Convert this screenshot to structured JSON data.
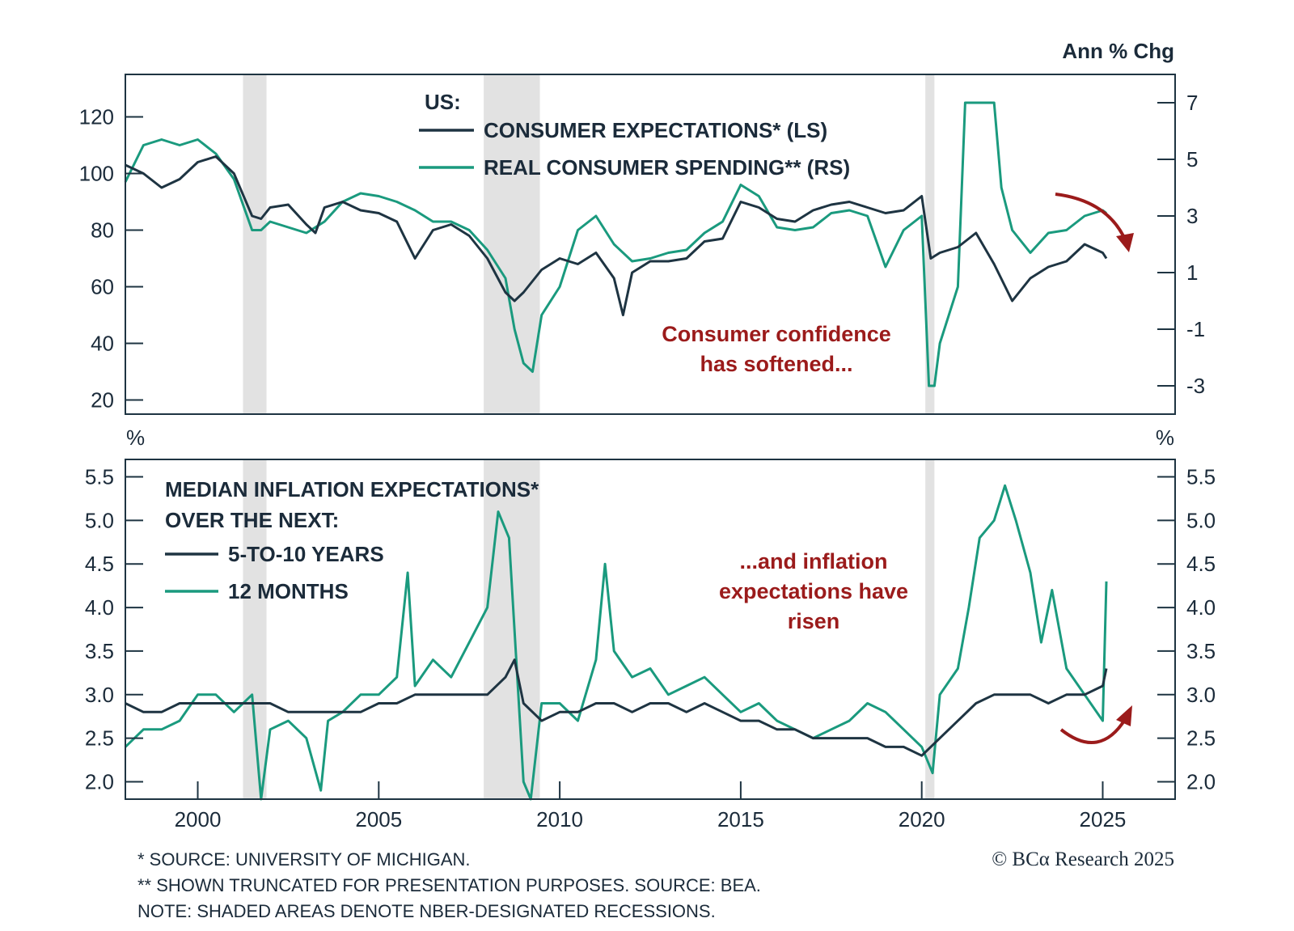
{
  "chart_data": [
    {
      "type": "line",
      "title": "US:",
      "right_axis_title": "Ann % Chg",
      "left_ylim": [
        15,
        135
      ],
      "left_ticks": [
        20,
        40,
        60,
        80,
        100,
        120
      ],
      "right_ylim": [
        -4,
        8
      ],
      "right_ticks": [
        -3,
        -1,
        1,
        3,
        5,
        7
      ],
      "xlim": [
        1998,
        2027
      ],
      "grid": false,
      "legend_position": "top-center",
      "series": [
        {
          "name": "CONSUMER EXPECTATIONS* (LS)",
          "axis": "left",
          "color": "#1e3442",
          "x": [
            1998.0,
            1998.5,
            1999.0,
            1999.5,
            2000.0,
            2000.5,
            2001.0,
            2001.5,
            2001.75,
            2002.0,
            2002.5,
            2003.0,
            2003.25,
            2003.5,
            2004.0,
            2004.5,
            2005.0,
            2005.5,
            2006.0,
            2006.5,
            2007.0,
            2007.5,
            2008.0,
            2008.5,
            2008.75,
            2009.0,
            2009.5,
            2010.0,
            2010.5,
            2011.0,
            2011.5,
            2011.75,
            2012.0,
            2012.5,
            2013.0,
            2013.5,
            2014.0,
            2014.5,
            2015.0,
            2015.5,
            2016.0,
            2016.5,
            2017.0,
            2017.5,
            2018.0,
            2018.5,
            2019.0,
            2019.5,
            2020.0,
            2020.25,
            2020.5,
            2021.0,
            2021.5,
            2022.0,
            2022.5,
            2023.0,
            2023.5,
            2024.0,
            2024.5,
            2025.0,
            2025.1
          ],
          "values": [
            103,
            100,
            95,
            98,
            104,
            106,
            100,
            85,
            84,
            88,
            89,
            82,
            79,
            88,
            90,
            87,
            86,
            83,
            70,
            80,
            82,
            78,
            70,
            58,
            55,
            58,
            66,
            70,
            68,
            72,
            63,
            50,
            65,
            69,
            69,
            70,
            76,
            77,
            90,
            88,
            84,
            83,
            87,
            89,
            90,
            88,
            86,
            87,
            92,
            70,
            72,
            74,
            79,
            68,
            55,
            63,
            67,
            69,
            75,
            72,
            70
          ]
        },
        {
          "name": "REAL CONSUMER SPENDING** (RS)",
          "axis": "right",
          "color": "#1a9a7e",
          "x": [
            1998.0,
            1998.5,
            1999.0,
            1999.5,
            2000.0,
            2000.5,
            2001.0,
            2001.5,
            2001.75,
            2002.0,
            2002.5,
            2003.0,
            2003.5,
            2004.0,
            2004.5,
            2005.0,
            2005.5,
            2006.0,
            2006.5,
            2007.0,
            2007.5,
            2008.0,
            2008.5,
            2008.75,
            2009.0,
            2009.25,
            2009.5,
            2010.0,
            2010.5,
            2011.0,
            2011.5,
            2012.0,
            2012.5,
            2013.0,
            2013.5,
            2014.0,
            2014.5,
            2015.0,
            2015.5,
            2016.0,
            2016.5,
            2017.0,
            2017.5,
            2018.0,
            2018.5,
            2019.0,
            2019.5,
            2020.0,
            2020.2,
            2020.35,
            2020.5,
            2021.0,
            2021.2,
            2021.4,
            2021.6,
            2022.0,
            2022.2,
            2022.5,
            2023.0,
            2023.5,
            2024.0,
            2024.5,
            2025.0,
            2025.1
          ],
          "values": [
            4.2,
            5.5,
            5.7,
            5.5,
            5.7,
            5.2,
            4.3,
            2.5,
            2.5,
            2.8,
            2.6,
            2.4,
            2.8,
            3.5,
            3.8,
            3.7,
            3.5,
            3.2,
            2.8,
            2.8,
            2.5,
            1.8,
            0.8,
            -1.0,
            -2.2,
            -2.5,
            -0.5,
            0.5,
            2.5,
            3.0,
            2.0,
            1.4,
            1.5,
            1.7,
            1.8,
            2.4,
            2.8,
            4.1,
            3.7,
            2.6,
            2.5,
            2.6,
            3.1,
            3.2,
            3.0,
            1.2,
            2.5,
            3.0,
            -3.0,
            -3.0,
            -1.5,
            0.5,
            7.0,
            7.0,
            7.0,
            7.0,
            4.0,
            2.5,
            1.7,
            2.4,
            2.5,
            3.0,
            3.2,
            3.1
          ]
        }
      ],
      "annotations": [
        "Consumer confidence",
        "has softened..."
      ]
    },
    {
      "type": "line",
      "title": "MEDIAN INFLATION EXPECTATIONS* OVER THE NEXT:",
      "left_axis_title": "%",
      "right_axis_title": "%",
      "ylim": [
        1.8,
        5.7
      ],
      "yticks": [
        2.0,
        2.5,
        3.0,
        3.5,
        4.0,
        4.5,
        5.0,
        5.5
      ],
      "xlim": [
        1998,
        2027
      ],
      "xticks": [
        2000,
        2005,
        2010,
        2015,
        2020,
        2025
      ],
      "grid": false,
      "legend_position": "top-left",
      "recessions": [
        [
          2001.25,
          2001.9
        ],
        [
          2007.9,
          2009.45
        ],
        [
          2020.1,
          2020.35
        ]
      ],
      "series": [
        {
          "name": "5-TO-10 YEARS",
          "color": "#1e3442",
          "x": [
            1998.0,
            1998.5,
            1999.0,
            1999.5,
            2000.0,
            2001.0,
            2001.5,
            2002.0,
            2002.5,
            2003.0,
            2003.5,
            2004.0,
            2004.5,
            2005.0,
            2005.5,
            2006.0,
            2006.5,
            2007.0,
            2007.5,
            2008.0,
            2008.5,
            2008.75,
            2009.0,
            2009.5,
            2010.0,
            2010.5,
            2011.0,
            2011.5,
            2012.0,
            2012.5,
            2013.0,
            2013.5,
            2014.0,
            2014.5,
            2015.0,
            2015.5,
            2016.0,
            2016.5,
            2017.0,
            2017.5,
            2018.0,
            2018.5,
            2019.0,
            2019.5,
            2020.0,
            2020.5,
            2021.0,
            2021.5,
            2022.0,
            2022.5,
            2023.0,
            2023.5,
            2024.0,
            2024.5,
            2025.0,
            2025.1
          ],
          "values": [
            2.9,
            2.8,
            2.8,
            2.9,
            2.9,
            2.9,
            2.9,
            2.9,
            2.8,
            2.8,
            2.8,
            2.8,
            2.8,
            2.9,
            2.9,
            3.0,
            3.0,
            3.0,
            3.0,
            3.0,
            3.2,
            3.4,
            2.9,
            2.7,
            2.8,
            2.8,
            2.9,
            2.9,
            2.8,
            2.9,
            2.9,
            2.8,
            2.9,
            2.8,
            2.7,
            2.7,
            2.6,
            2.6,
            2.5,
            2.5,
            2.5,
            2.5,
            2.4,
            2.4,
            2.3,
            2.5,
            2.7,
            2.9,
            3.0,
            3.0,
            3.0,
            2.9,
            3.0,
            3.0,
            3.1,
            3.3
          ]
        },
        {
          "name": "12 MONTHS",
          "color": "#1a9a7e",
          "x": [
            1998.0,
            1998.5,
            1999.0,
            1999.5,
            2000.0,
            2000.5,
            2001.0,
            2001.5,
            2001.75,
            2002.0,
            2002.5,
            2003.0,
            2003.4,
            2003.6,
            2004.0,
            2004.5,
            2005.0,
            2005.5,
            2005.8,
            2006.0,
            2006.5,
            2007.0,
            2007.5,
            2008.0,
            2008.3,
            2008.6,
            2009.0,
            2009.2,
            2009.5,
            2010.0,
            2010.5,
            2011.0,
            2011.25,
            2011.5,
            2012.0,
            2012.5,
            2013.0,
            2013.5,
            2014.0,
            2014.5,
            2015.0,
            2015.5,
            2016.0,
            2016.5,
            2017.0,
            2017.5,
            2018.0,
            2018.5,
            2019.0,
            2019.5,
            2020.0,
            2020.3,
            2020.5,
            2021.0,
            2021.3,
            2021.6,
            2022.0,
            2022.3,
            2022.6,
            2023.0,
            2023.3,
            2023.6,
            2024.0,
            2024.5,
            2025.0,
            2025.1
          ],
          "values": [
            2.4,
            2.6,
            2.6,
            2.7,
            3.0,
            3.0,
            2.8,
            3.0,
            1.8,
            2.6,
            2.7,
            2.5,
            1.9,
            2.7,
            2.8,
            3.0,
            3.0,
            3.2,
            4.4,
            3.1,
            3.4,
            3.2,
            3.6,
            4.0,
            5.1,
            4.8,
            2.0,
            1.8,
            2.9,
            2.9,
            2.7,
            3.4,
            4.5,
            3.5,
            3.2,
            3.3,
            3.0,
            3.1,
            3.2,
            3.0,
            2.8,
            2.9,
            2.7,
            2.6,
            2.5,
            2.6,
            2.7,
            2.9,
            2.8,
            2.6,
            2.4,
            2.1,
            3.0,
            3.3,
            4.0,
            4.8,
            5.0,
            5.4,
            5.0,
            4.4,
            3.6,
            4.2,
            3.3,
            3.0,
            2.7,
            4.3
          ]
        }
      ],
      "annotations": [
        "...and inflation",
        "expectations have",
        "risen"
      ]
    }
  ],
  "recessions_top": [
    [
      2001.25,
      2001.9
    ],
    [
      2007.9,
      2009.45
    ],
    [
      2020.1,
      2020.35
    ]
  ],
  "footnotes": {
    "line1": "* SOURCE: UNIVERSITY OF MICHIGAN.",
    "line2": "** SHOWN TRUNCATED FOR PRESENTATION PURPOSES. SOURCE: BEA.",
    "line3": "NOTE: SHADED AREAS DENOTE NBER-DESIGNATED RECESSIONS."
  },
  "brand": "© BCα Research 2025",
  "colors": {
    "dark": "#1e3442",
    "green": "#1a9a7e",
    "recession": "#e2e2e2",
    "annotation": "#9b1b1b"
  }
}
